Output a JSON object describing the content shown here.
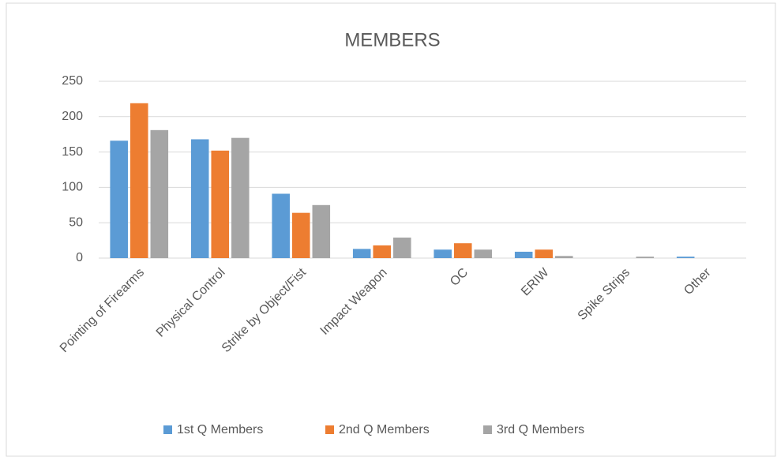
{
  "chart_data": {
    "type": "bar",
    "title": "MEMBERS",
    "categories": [
      "Pointing of Firearms",
      "Physical Control",
      "Strike by Object/Fist",
      "Impact Weapon",
      "OC",
      "ERIW",
      "Spike Strips",
      "Other"
    ],
    "series": [
      {
        "name": "1st Q Members",
        "color": "#5b9bd5",
        "values": [
          166,
          168,
          91,
          13,
          12,
          9,
          0,
          2
        ]
      },
      {
        "name": "2nd Q Members",
        "color": "#ed7d31",
        "values": [
          219,
          152,
          64,
          18,
          21,
          12,
          0,
          0
        ]
      },
      {
        "name": "3rd Q Members",
        "color": "#a5a5a5",
        "values": [
          181,
          170,
          75,
          29,
          12,
          3,
          2,
          0
        ]
      }
    ],
    "ylim": [
      0,
      250
    ],
    "yticks": [
      0,
      50,
      100,
      150,
      200,
      250
    ],
    "grid": true,
    "legend": "bottom"
  }
}
